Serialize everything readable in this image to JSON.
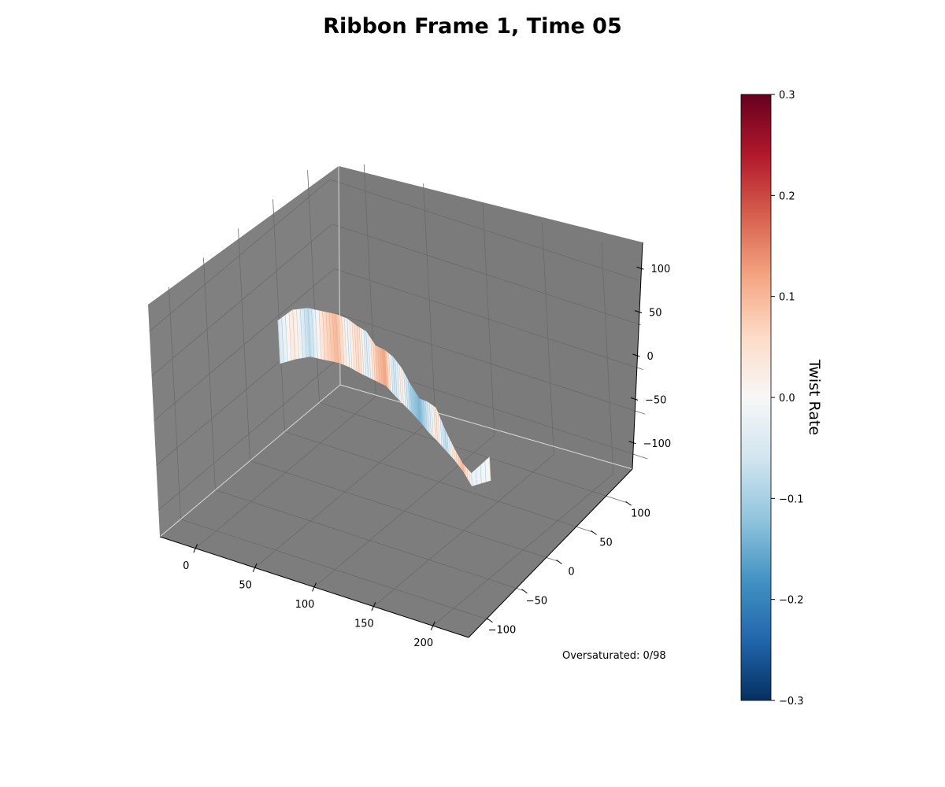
{
  "chart_data": {
    "type": "surface",
    "title": "Ribbon Frame 1, Time 05",
    "xlim": [
      -30,
      230
    ],
    "ylim": [
      -130,
      130
    ],
    "zlim": [
      -130,
      130
    ],
    "x_ticks": [
      0,
      50,
      100,
      150,
      200
    ],
    "y_ticks": [
      -100,
      -50,
      0,
      50,
      100
    ],
    "z_ticks": [
      -100,
      -50,
      0,
      50,
      100
    ],
    "x_tick_labels": [
      "0",
      "50",
      "100",
      "150",
      "200"
    ],
    "y_tick_labels": [
      "−100",
      "−50",
      "0",
      "50",
      "100"
    ],
    "z_tick_labels": [
      "−100",
      "−50",
      "0",
      "50",
      "100"
    ],
    "grid": true,
    "pane_color": "#808080",
    "grid_color": "#6a6a6a",
    "colormap": "RdBu_r",
    "colorbar": {
      "label": "Twist Rate",
      "vmin": -0.3,
      "vmax": 0.3,
      "ticks": [
        -0.3,
        -0.2,
        -0.1,
        0.0,
        0.1,
        0.2,
        0.3
      ],
      "tick_labels": [
        "−0.3",
        "−0.2",
        "−0.1",
        "0.0",
        "0.1",
        "0.2",
        "0.3"
      ]
    },
    "annotation": "Oversaturated: 0/98",
    "ribbon": {
      "centerline": [
        [
          0,
          0,
          0
        ],
        [
          10,
          5,
          3
        ],
        [
          20,
          10,
          4
        ],
        [
          30,
          14,
          2
        ],
        [
          40,
          16,
          2
        ],
        [
          50,
          15,
          3
        ],
        [
          60,
          12,
          2
        ],
        [
          70,
          8,
          3
        ],
        [
          80,
          4,
          6
        ],
        [
          90,
          0,
          8
        ],
        [
          100,
          -5,
          6
        ],
        [
          110,
          -10,
          3
        ],
        [
          120,
          -15,
          0
        ],
        [
          130,
          -20,
          -3
        ],
        [
          140,
          -25,
          -6
        ],
        [
          150,
          -30,
          -8
        ],
        [
          160,
          -35,
          -10
        ],
        [
          170,
          -40,
          -13
        ],
        [
          180,
          -45,
          -18
        ],
        [
          190,
          -50,
          -22
        ],
        [
          200,
          -40,
          -12
        ]
      ],
      "top_offset": [
        40,
        50,
        52,
        52,
        52,
        51,
        50,
        50,
        38,
        38,
        40,
        38,
        30,
        25,
        32,
        35,
        20,
        10,
        5,
        6,
        12
      ],
      "bottom_offset": [
        8,
        5,
        2,
        2,
        2,
        3,
        2,
        1,
        2,
        2,
        3,
        2,
        1,
        1,
        2,
        2,
        3,
        3,
        3,
        8,
        14
      ],
      "twist_rate_stripes": [
        -0.05,
        0.03,
        -0.08,
        0.05,
        0.1,
        -0.02,
        0.06,
        -0.04,
        0.08,
        0.12,
        -0.06,
        0.02,
        -0.1,
        -0.14,
        -0.05,
        0.04,
        -0.08,
        0.03,
        0.1,
        -0.02,
        0.0
      ]
    }
  }
}
